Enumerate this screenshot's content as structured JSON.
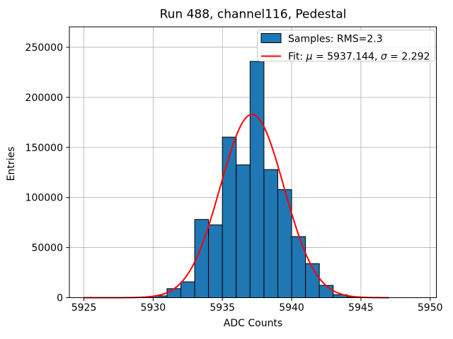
{
  "figure": {
    "background": "#ffffff",
    "frame_color": "#000000",
    "grid_color": "#b0b0b0"
  },
  "chart_data": {
    "type": "bar",
    "subtype": "histogram-with-gaussian-fit",
    "title": "Run 488, channel116, Pedestal",
    "xlabel": "ADC Counts",
    "ylabel": "Entries",
    "xlim": [
      5923.95,
      5950.45
    ],
    "ylim": [
      0,
      270400
    ],
    "xticks": [
      5925,
      5930,
      5935,
      5940,
      5945,
      5950
    ],
    "yticks": [
      0,
      50000,
      100000,
      150000,
      200000,
      250000
    ],
    "grid": true,
    "legend_position": "upper right",
    "bar_color": "#1f77b4",
    "bar_edge_color": "#000000",
    "bin_width": 1,
    "bin_left_edges": [
      5929,
      5930,
      5931,
      5932,
      5933,
      5934,
      5935,
      5936,
      5937,
      5938,
      5939,
      5940,
      5941,
      5942,
      5943,
      5944
    ],
    "counts": [
      500,
      1800,
      9000,
      15800,
      78100,
      72700,
      160300,
      132600,
      235900,
      127900,
      107900,
      61000,
      34000,
      12300,
      3000,
      600
    ],
    "fit": {
      "mu": 5937.144,
      "sigma": 2.292,
      "peak": 183000,
      "color": "#ff0000",
      "x_min": 5925,
      "x_max": 5947
    },
    "legend": {
      "entries": [
        {
          "type": "patch",
          "label": "Samples: RMS=2.3",
          "color": "#1f77b4"
        },
        {
          "type": "line",
          "label": "Fit: μ = 5937.144, σ = 2.292",
          "color": "#ff0000",
          "label_parts": {
            "prefix": "Fit: ",
            "mu_symbol": "μ",
            "mu_value": " = 5937.144, ",
            "sigma_symbol": "σ",
            "sigma_value": " = 2.292"
          }
        }
      ]
    }
  }
}
